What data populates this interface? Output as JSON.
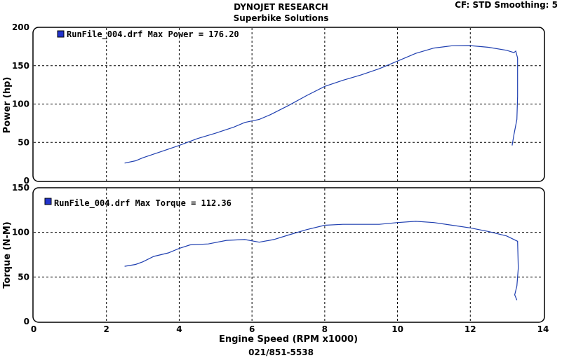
{
  "header": {
    "title": "DYNOJET RESEARCH",
    "subtitle": "Superbike Solutions",
    "settings": "CF: STD  Smoothing: 5"
  },
  "footer": {
    "phone": "021/851-5538"
  },
  "colors": {
    "line": "#1f3fb0",
    "grid": "#000000",
    "panel_border": "#000000",
    "legend_icon": "#2233cc"
  },
  "chart_data": [
    {
      "type": "line",
      "ylabel": "Power (hp)",
      "ylim": [
        0,
        200
      ],
      "yticks": [
        0,
        50,
        100,
        150,
        200
      ],
      "xlim": [
        0,
        14
      ],
      "grid": true,
      "legend": "RunFile_004.drf Max Power = 176.20",
      "legend_position": "top-left",
      "series": [
        {
          "name": "RunFile_004.drf",
          "x": [
            2.5,
            2.8,
            3.0,
            3.5,
            4.0,
            4.5,
            5.0,
            5.5,
            5.8,
            6.2,
            6.5,
            7.0,
            7.5,
            8.0,
            8.5,
            9.0,
            9.5,
            10.0,
            10.5,
            11.0,
            11.5,
            12.0,
            12.5,
            13.0,
            13.2,
            13.25,
            13.3,
            13.3,
            13.28,
            13.2,
            13.15
          ],
          "y": [
            23,
            26,
            30,
            38,
            46,
            55,
            62,
            70,
            76,
            80,
            86,
            98,
            111,
            123,
            131,
            138,
            146,
            156,
            166,
            173,
            176,
            176.2,
            174,
            170,
            167,
            169,
            160,
            110,
            80,
            60,
            46
          ]
        }
      ]
    },
    {
      "type": "line",
      "ylabel": "Torque (N-M)",
      "xlabel": "Engine Speed (RPM x1000)",
      "ylim": [
        0,
        150
      ],
      "yticks": [
        0,
        50,
        100,
        150
      ],
      "xlim": [
        0,
        14
      ],
      "xticks": [
        0,
        2,
        4,
        6,
        8,
        10,
        12,
        14
      ],
      "grid": true,
      "legend": "RunFile_004.drf Max Torque = 112.36",
      "legend_position": "top-left",
      "series": [
        {
          "name": "RunFile_004.drf",
          "x": [
            2.5,
            2.8,
            3.0,
            3.3,
            3.7,
            4.0,
            4.3,
            4.8,
            5.3,
            5.8,
            6.2,
            6.6,
            7.0,
            7.5,
            8.0,
            8.5,
            9.0,
            9.5,
            10.0,
            10.5,
            11.0,
            11.5,
            12.0,
            12.5,
            13.0,
            13.3,
            13.32,
            13.28,
            13.22,
            13.28
          ],
          "y": [
            62,
            64,
            67,
            73,
            77,
            82,
            86,
            87,
            91,
            92,
            89,
            92,
            97,
            103,
            108,
            109,
            109,
            109,
            111,
            112.36,
            111,
            108,
            105,
            101,
            96,
            90,
            60,
            40,
            30,
            24
          ]
        }
      ]
    }
  ]
}
